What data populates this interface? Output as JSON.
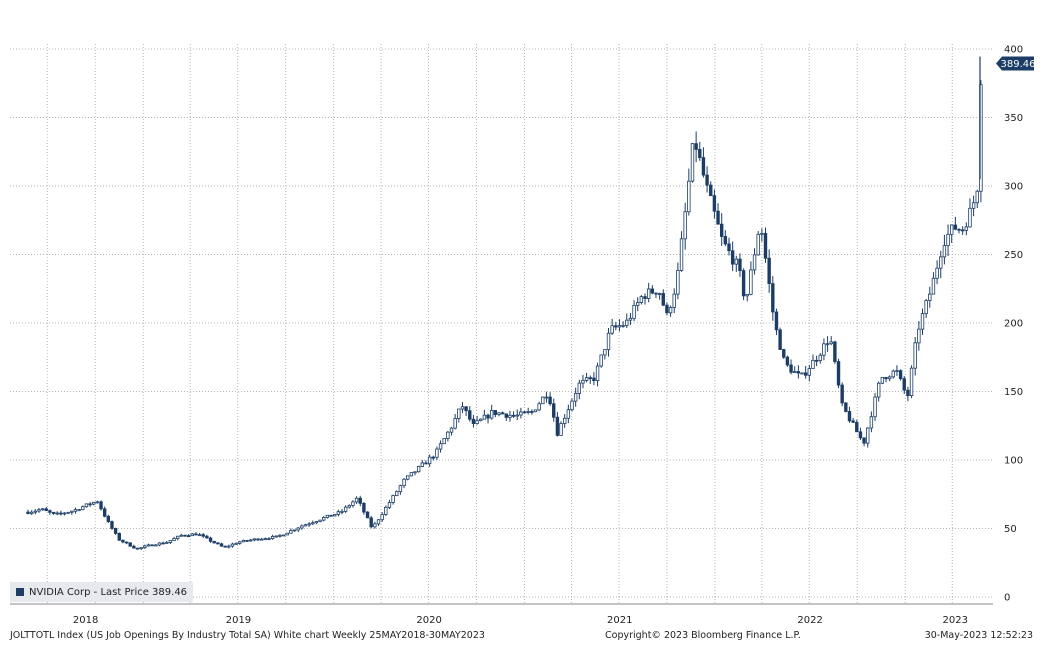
{
  "chart_data": {
    "type": "candlestick",
    "frequency": "weekly",
    "x_ticks": [
      "2018",
      "2019",
      "2020",
      "2021",
      "2022",
      "2023"
    ],
    "y_ticks": [
      0,
      50,
      100,
      150,
      200,
      250,
      300,
      350,
      400
    ],
    "ylim": [
      0,
      400
    ],
    "grid": true,
    "last_price": 389.46,
    "last_price_label": "389.46",
    "legend": {
      "entries": [
        "NVIDIA Corp - Last Price 389.46"
      ],
      "placement": "bottom-left"
    },
    "colors": {
      "series": "#1c3d66",
      "grid": "#b5b5b5",
      "legend_bg": "#e6e9ee"
    },
    "series": [
      {
        "name": "NVIDIA Corp - Last Price",
        "x_start": "2018-05-25",
        "x_end": "2023-05-30",
        "anchors": [
          [
            "2018-05-25",
            62
          ],
          [
            "2018-06-20",
            64
          ],
          [
            "2018-07-15",
            60
          ],
          [
            "2018-08-20",
            63
          ],
          [
            "2018-09-20",
            68
          ],
          [
            "2018-10-05",
            70
          ],
          [
            "2018-10-25",
            55
          ],
          [
            "2018-11-15",
            42
          ],
          [
            "2018-12-20",
            35
          ],
          [
            "2019-01-15",
            38
          ],
          [
            "2019-02-15",
            40
          ],
          [
            "2019-03-15",
            45
          ],
          [
            "2019-04-15",
            46
          ],
          [
            "2019-05-15",
            40
          ],
          [
            "2019-06-05",
            36
          ],
          [
            "2019-07-01",
            40
          ],
          [
            "2019-08-01",
            42
          ],
          [
            "2019-09-15",
            44
          ],
          [
            "2019-11-01",
            52
          ],
          [
            "2019-12-15",
            58
          ],
          [
            "2020-01-15",
            62
          ],
          [
            "2020-02-15",
            72
          ],
          [
            "2020-03-15",
            50
          ],
          [
            "2020-04-15",
            68
          ],
          [
            "2020-05-15",
            85
          ],
          [
            "2020-06-15",
            95
          ],
          [
            "2020-07-15",
            105
          ],
          [
            "2020-08-15",
            125
          ],
          [
            "2020-09-03",
            140
          ],
          [
            "2020-09-25",
            125
          ],
          [
            "2020-11-01",
            135
          ],
          [
            "2020-12-15",
            132
          ],
          [
            "2021-01-15",
            135
          ],
          [
            "2021-02-15",
            150
          ],
          [
            "2021-03-05",
            120
          ],
          [
            "2021-04-15",
            155
          ],
          [
            "2021-05-15",
            160
          ],
          [
            "2021-06-15",
            195
          ],
          [
            "2021-07-15",
            200
          ],
          [
            "2021-08-15",
            220
          ],
          [
            "2021-09-15",
            225
          ],
          [
            "2021-10-01",
            205
          ],
          [
            "2021-10-20",
            230
          ],
          [
            "2021-11-05",
            280
          ],
          [
            "2021-11-22",
            335
          ],
          [
            "2021-12-15",
            300
          ],
          [
            "2022-01-15",
            260
          ],
          [
            "2022-02-15",
            240
          ],
          [
            "2022-03-01",
            215
          ],
          [
            "2022-03-29",
            275
          ],
          [
            "2022-04-25",
            200
          ],
          [
            "2022-05-15",
            170
          ],
          [
            "2022-06-15",
            160
          ],
          [
            "2022-07-15",
            175
          ],
          [
            "2022-08-10",
            190
          ],
          [
            "2022-09-01",
            140
          ],
          [
            "2022-10-13",
            112
          ],
          [
            "2022-11-15",
            160
          ],
          [
            "2022-12-15",
            165
          ],
          [
            "2023-01-05",
            145
          ],
          [
            "2023-01-25",
            195
          ],
          [
            "2023-02-20",
            225
          ],
          [
            "2023-03-15",
            260
          ],
          [
            "2023-04-05",
            270
          ],
          [
            "2023-04-20",
            268
          ],
          [
            "2023-05-10",
            285
          ],
          [
            "2023-05-22",
            305
          ],
          [
            "2023-05-26",
            380
          ],
          [
            "2023-05-30",
            389.46
          ]
        ]
      }
    ]
  },
  "footer": {
    "left": "JOLTTOTL Index (US Job Openings By Industry Total SA) White chart  Weekly 25MAY2018-30MAY2023",
    "center": "Copyright© 2023 Bloomberg Finance L.P.",
    "right": "30-May-2023 12:52:23"
  }
}
